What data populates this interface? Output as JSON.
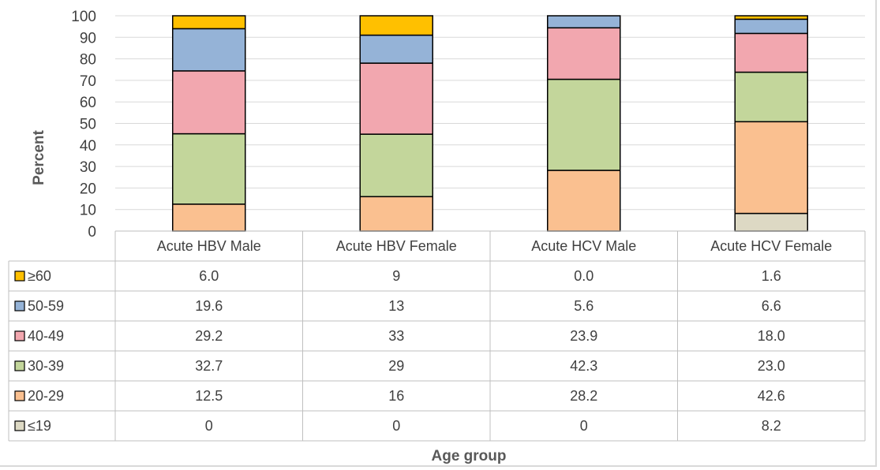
{
  "chart_data": {
    "type": "bar",
    "stacked": true,
    "categories": [
      "Acute HBV Male",
      "Acute HBV Female",
      "Acute HCV Male",
      "Acute HCV Female"
    ],
    "series": [
      {
        "name": "≤19",
        "values": [
          "0",
          "0",
          "0",
          "8.2"
        ],
        "color": "#ddd9c4"
      },
      {
        "name": "20-29",
        "values": [
          "12.5",
          "16",
          "28.2",
          "42.6"
        ],
        "color": "#fac090"
      },
      {
        "name": "30-39",
        "values": [
          "32.7",
          "29",
          "42.3",
          "23.0"
        ],
        "color": "#c3d69b"
      },
      {
        "name": "40-49",
        "values": [
          "29.2",
          "33",
          "23.9",
          "18.0"
        ],
        "color": "#f2a7af"
      },
      {
        "name": "50-59",
        "values": [
          "19.6",
          "13",
          "5.6",
          "6.6"
        ],
        "color": "#95b3d7"
      },
      {
        "name": "≥60",
        "values": [
          "6.0",
          "9",
          "0.0",
          "1.6"
        ],
        "color": "#ffc000"
      }
    ],
    "table_row_order": [
      "≥60",
      "50-59",
      "40-49",
      "30-39",
      "20-29",
      "≤19"
    ],
    "xlabel": "Age group",
    "ylabel": "Percent",
    "ylim": [
      0,
      100
    ],
    "yticks": [
      "0",
      "10",
      "20",
      "30",
      "40",
      "50",
      "60",
      "70",
      "80",
      "90",
      "100"
    ],
    "grid": true,
    "legend_placement": "data table"
  }
}
